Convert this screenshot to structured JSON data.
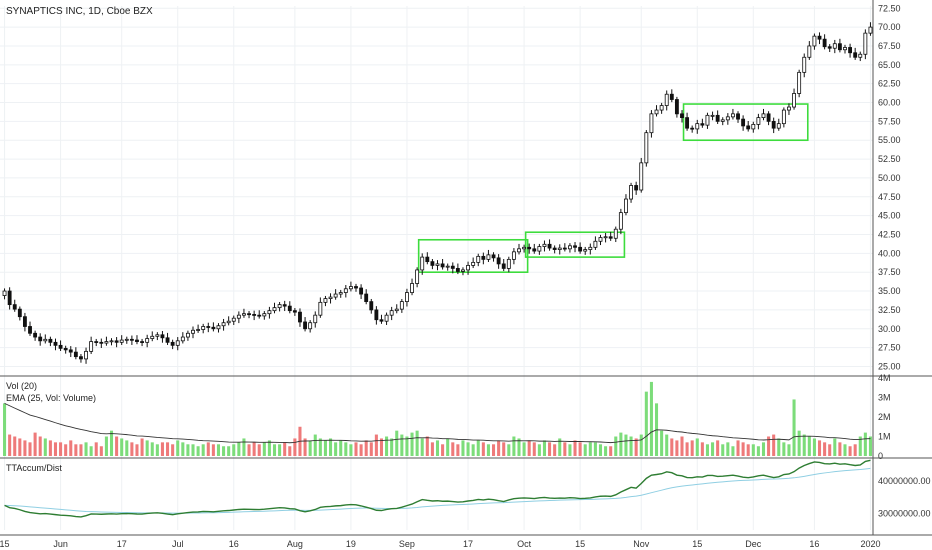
{
  "chart_data": {
    "type": "candlestick",
    "title": "SYNAPTICS INC, 1D, Cboe BZX",
    "price_axis": {
      "ylim": [
        24.0,
        72.8
      ],
      "ticks": [
        "25.00",
        "27.50",
        "30.00",
        "32.50",
        "35.00",
        "37.50",
        "40.00",
        "42.50",
        "45.00",
        "47.50",
        "50.00",
        "52.50",
        "55.00",
        "57.50",
        "60.00",
        "62.50",
        "65.00",
        "67.50",
        "70.00",
        "72.50"
      ]
    },
    "x_labels": [
      "15",
      "Jun",
      "17",
      "Jul",
      "16",
      "Aug",
      "19",
      "Sep",
      "17",
      "Oct",
      "15",
      "Nov",
      "15",
      "Dec",
      "16",
      "2020"
    ],
    "close": [
      35.0,
      33.2,
      32.6,
      31.6,
      30.3,
      29.4,
      28.9,
      28.4,
      28.6,
      28.2,
      27.8,
      27.4,
      27.2,
      26.9,
      26.3,
      26.0,
      27.0,
      28.3,
      28.2,
      28.1,
      28.3,
      28.4,
      28.2,
      28.5,
      28.6,
      28.5,
      28.3,
      28.2,
      28.7,
      29.0,
      29.2,
      28.8,
      28.2,
      27.8,
      28.4,
      28.9,
      29.4,
      29.8,
      29.9,
      30.3,
      30.2,
      30.0,
      30.4,
      30.8,
      31.0,
      31.4,
      31.8,
      32.0,
      31.9,
      31.8,
      31.7,
      32.0,
      32.4,
      32.8,
      33.2,
      33.0,
      32.4,
      32.2,
      30.9,
      30.0,
      30.8,
      31.8,
      33.5,
      34.0,
      34.2,
      34.6,
      34.8,
      35.3,
      35.6,
      35.4,
      34.6,
      33.6,
      32.5,
      31.2,
      31.0,
      31.8,
      32.4,
      32.6,
      33.6,
      34.8,
      36.0,
      37.8,
      39.5,
      38.9,
      38.4,
      38.6,
      38.2,
      38.3,
      38.0,
      37.6,
      37.8,
      38.4,
      38.8,
      39.6,
      39.2,
      39.8,
      39.4,
      38.6,
      38.0,
      39.2,
      40.2,
      40.6,
      40.8,
      40.6,
      40.3,
      40.9,
      41.2,
      40.7,
      40.5,
      40.7,
      40.6,
      41.0,
      40.8,
      40.3,
      40.5,
      40.8,
      41.6,
      42.1,
      42.2,
      42.0,
      43.2,
      45.4,
      47.2,
      49.0,
      48.4,
      52.0,
      56.0,
      58.5,
      59.0,
      59.6,
      61.1,
      60.4,
      58.5,
      58.0,
      56.6,
      56.5,
      57.2,
      57.0,
      58.3,
      58.3,
      57.5,
      57.7,
      58.1,
      58.5,
      57.8,
      56.9,
      56.5,
      57.1,
      58.0,
      58.5,
      57.5,
      56.6,
      57.2,
      59.0,
      59.4,
      61.2,
      64.0,
      66.0,
      67.5,
      68.8,
      68.4,
      67.4,
      67.2,
      67.8,
      67.0,
      67.3,
      66.6,
      66.0,
      66.4,
      69.2,
      70.0
    ],
    "volume_panel": {
      "label": "Vol (20)",
      "ema_label": "EMA (25, Vol: Volume)",
      "ymax": 4000000,
      "ticks": [
        "0",
        "1M",
        "2M",
        "3M",
        "4M"
      ],
      "values": [
        2.7,
        1.1,
        1.0,
        0.9,
        0.8,
        0.7,
        1.2,
        1.0,
        0.9,
        0.8,
        0.7,
        0.7,
        0.6,
        0.8,
        0.6,
        0.6,
        0.7,
        0.5,
        0.7,
        0.5,
        1.0,
        1.3,
        1.0,
        0.9,
        0.8,
        0.7,
        0.6,
        0.9,
        0.8,
        0.7,
        0.6,
        0.7,
        0.7,
        0.6,
        0.8,
        0.7,
        0.6,
        0.6,
        0.5,
        0.6,
        0.7,
        0.6,
        0.6,
        0.5,
        0.5,
        0.6,
        0.7,
        0.9,
        0.6,
        0.7,
        0.6,
        0.7,
        0.8,
        0.6,
        0.6,
        0.7,
        0.5,
        0.9,
        1.5,
        0.9,
        0.8,
        1.1,
        0.9,
        0.8,
        0.9,
        0.7,
        0.8,
        0.7,
        0.6,
        0.7,
        0.6,
        0.8,
        0.7,
        1.1,
        0.9,
        1.0,
        0.9,
        1.3,
        1.1,
        1.0,
        1.2,
        1.3,
        0.9,
        1.0,
        0.7,
        0.8,
        0.6,
        0.9,
        0.7,
        0.6,
        0.8,
        0.7,
        0.6,
        0.8,
        0.7,
        0.6,
        0.6,
        0.8,
        0.7,
        0.6,
        1.0,
        0.9,
        0.7,
        0.8,
        0.7,
        0.6,
        0.8,
        0.7,
        0.6,
        0.9,
        0.7,
        0.6,
        0.8,
        0.7,
        0.6,
        0.7,
        0.7,
        0.6,
        0.5,
        0.5,
        1.0,
        1.2,
        1.1,
        1.0,
        0.9,
        1.1,
        3.3,
        3.8,
        2.7,
        1.3,
        1.1,
        0.9,
        0.8,
        1.0,
        0.7,
        0.8,
        0.9,
        0.7,
        0.6,
        0.7,
        0.8,
        0.6,
        0.7,
        0.5,
        0.8,
        0.7,
        0.6,
        0.6,
        0.5,
        0.7,
        1.0,
        1.1,
        0.9,
        0.7,
        0.6,
        2.9,
        1.3,
        1.1,
        1.0,
        0.9,
        0.8,
        0.7,
        0.6,
        0.9,
        0.7,
        0.6,
        0.5,
        0.6,
        1.0,
        1.2,
        1.0
      ]
    },
    "accum_panel": {
      "label": "TTAccum/Dist",
      "ticks": [
        "30000000.00",
        "40000000.00"
      ],
      "ylim": [
        25000000,
        46500000
      ]
    },
    "boxes": [
      {
        "x_from": 2019.0,
        "start": 82,
        "end": 102,
        "low": 37.5,
        "high": 41.8
      },
      {
        "start": 103,
        "end": 121,
        "low": 39.5,
        "high": 42.8
      },
      {
        "start": 134,
        "end": 157,
        "low": 55.0,
        "high": 59.8
      }
    ],
    "colors": {
      "up": "#7cdc7a",
      "down": "#ee7a7a",
      "box": "#3ddc3d",
      "ema": "#333333",
      "accum": "#2e7d32",
      "accum_ma": "#90cfe3"
    }
  }
}
